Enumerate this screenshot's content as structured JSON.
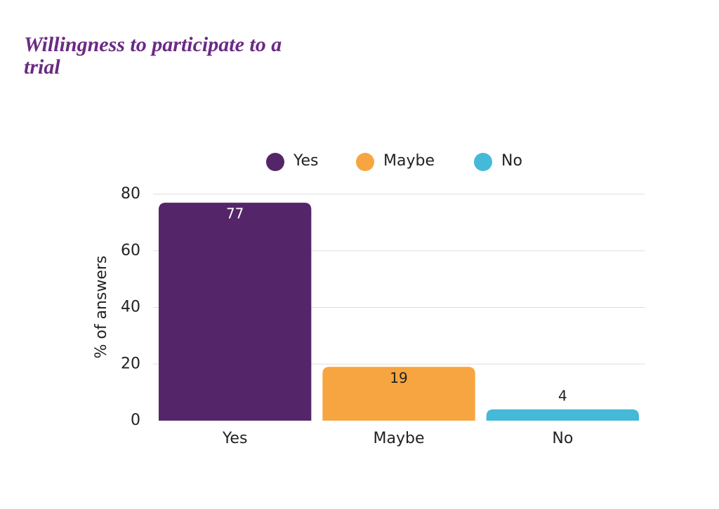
{
  "chart_data": {
    "type": "bar",
    "title": "Willingness to participate to a trial",
    "ylabel": "% of answers",
    "categories": [
      "Yes",
      "Maybe",
      "No"
    ],
    "values": [
      77,
      19,
      4
    ],
    "colors": [
      "#542568",
      "#f7a540",
      "#45b9d8"
    ],
    "ylim": [
      0,
      80
    ],
    "yticks": [
      0,
      20,
      40,
      60,
      80
    ],
    "grid": true,
    "legend": "top"
  }
}
